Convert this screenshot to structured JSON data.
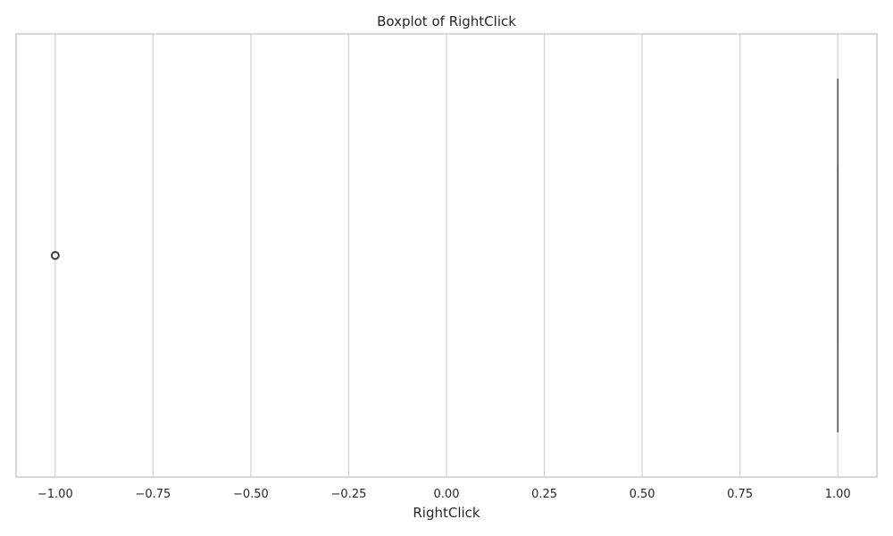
{
  "chart_data": {
    "type": "boxplot",
    "orientation": "horizontal",
    "title": "Boxplot of RightClick",
    "xlabel": "RightClick",
    "ylabel": "",
    "xlim": [
      -1.1,
      1.1
    ],
    "x_ticks": [
      -1.0,
      -0.75,
      -0.5,
      -0.25,
      0.0,
      0.25,
      0.5,
      0.75,
      1.0
    ],
    "x_tick_labels": [
      "−1.00",
      "−0.75",
      "−0.50",
      "−0.25",
      "0.00",
      "0.25",
      "0.50",
      "0.75",
      "1.00"
    ],
    "grid": "vertical",
    "box": {
      "min": 1.0,
      "q1": 1.0,
      "median": 1.0,
      "q3": 1.0,
      "max": 1.0
    },
    "outliers": [
      -1.0
    ],
    "colors": {
      "grid": "#d5d5d5",
      "spine": "#cccccc",
      "box_line": "#4a4a4a",
      "outlier_edge": "#3a3a3a"
    }
  }
}
